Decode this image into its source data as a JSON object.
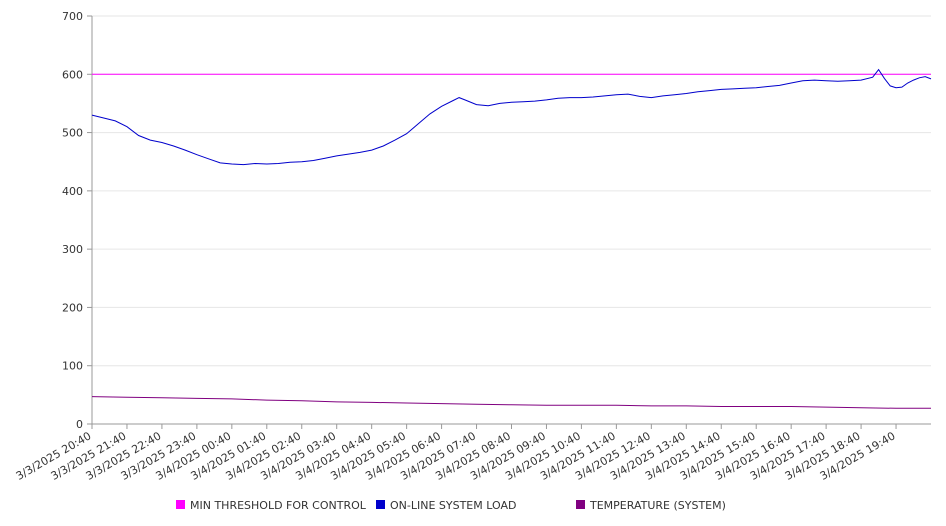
{
  "chart_data": {
    "type": "line",
    "title": "",
    "xlabel": "",
    "ylabel": "",
    "ylim": [
      0,
      700
    ],
    "yticks": [
      0,
      100,
      200,
      300,
      400,
      500,
      600,
      700
    ],
    "xlim": [
      "3/3/2025 20:40",
      "3/4/2025 20:40"
    ],
    "xtick_labels": [
      "3/3/2025 20:40",
      "3/3/2025 21:40",
      "3/3/2025 22:40",
      "3/3/2025 23:40",
      "3/4/2025 00:40",
      "3/4/2025 01:40",
      "3/4/2025 02:40",
      "3/4/2025 03:40",
      "3/4/2025 04:40",
      "3/4/2025 05:40",
      "3/4/2025 06:40",
      "3/4/2025 07:40",
      "3/4/2025 08:40",
      "3/4/2025 09:40",
      "3/4/2025 10:40",
      "3/4/2025 11:40",
      "3/4/2025 12:40",
      "3/4/2025 13:40",
      "3/4/2025 14:40",
      "3/4/2025 15:40",
      "3/4/2025 16:40",
      "3/4/2025 17:40",
      "3/4/2025 18:40",
      "3/4/2025 19:40"
    ],
    "grid": "horizontal",
    "legend_position": "bottom",
    "series": [
      {
        "name": "MIN THRESHOLD FOR CONTROL",
        "color": "#ff00ff",
        "points": [
          [
            "3/3/2025 20:40",
            600
          ],
          [
            "3/4/2025 20:40",
            600
          ]
        ]
      },
      {
        "name": "ON-LINE SYSTEM LOAD",
        "color": "#0000cc",
        "points": [
          [
            "3/3/2025 20:40",
            530
          ],
          [
            "3/3/2025 21:00",
            525
          ],
          [
            "3/3/2025 21:20",
            520
          ],
          [
            "3/3/2025 21:40",
            510
          ],
          [
            "3/3/2025 22:00",
            495
          ],
          [
            "3/3/2025 22:20",
            487
          ],
          [
            "3/3/2025 22:40",
            483
          ],
          [
            "3/3/2025 23:00",
            477
          ],
          [
            "3/3/2025 23:20",
            470
          ],
          [
            "3/3/2025 23:40",
            462
          ],
          [
            "3/4/2025 00:00",
            455
          ],
          [
            "3/4/2025 00:20",
            448
          ],
          [
            "3/4/2025 00:40",
            446
          ],
          [
            "3/4/2025 01:00",
            445
          ],
          [
            "3/4/2025 01:20",
            447
          ],
          [
            "3/4/2025 01:40",
            446
          ],
          [
            "3/4/2025 02:00",
            447
          ],
          [
            "3/4/2025 02:20",
            449
          ],
          [
            "3/4/2025 02:40",
            450
          ],
          [
            "3/4/2025 03:00",
            452
          ],
          [
            "3/4/2025 03:20",
            456
          ],
          [
            "3/4/2025 03:40",
            460
          ],
          [
            "3/4/2025 04:00",
            463
          ],
          [
            "3/4/2025 04:20",
            466
          ],
          [
            "3/4/2025 04:40",
            470
          ],
          [
            "3/4/2025 05:00",
            477
          ],
          [
            "3/4/2025 05:20",
            487
          ],
          [
            "3/4/2025 05:40",
            498
          ],
          [
            "3/4/2025 06:00",
            515
          ],
          [
            "3/4/2025 06:20",
            532
          ],
          [
            "3/4/2025 06:40",
            545
          ],
          [
            "3/4/2025 07:00",
            555
          ],
          [
            "3/4/2025 07:10",
            560
          ],
          [
            "3/4/2025 07:20",
            556
          ],
          [
            "3/4/2025 07:40",
            548
          ],
          [
            "3/4/2025 08:00",
            546
          ],
          [
            "3/4/2025 08:20",
            550
          ],
          [
            "3/4/2025 08:40",
            552
          ],
          [
            "3/4/2025 09:00",
            553
          ],
          [
            "3/4/2025 09:20",
            554
          ],
          [
            "3/4/2025 09:40",
            556
          ],
          [
            "3/4/2025 10:00",
            559
          ],
          [
            "3/4/2025 10:20",
            560
          ],
          [
            "3/4/2025 10:40",
            560
          ],
          [
            "3/4/2025 11:00",
            561
          ],
          [
            "3/4/2025 11:20",
            563
          ],
          [
            "3/4/2025 11:40",
            565
          ],
          [
            "3/4/2025 12:00",
            566
          ],
          [
            "3/4/2025 12:20",
            562
          ],
          [
            "3/4/2025 12:40",
            560
          ],
          [
            "3/4/2025 13:00",
            563
          ],
          [
            "3/4/2025 13:20",
            565
          ],
          [
            "3/4/2025 13:40",
            567
          ],
          [
            "3/4/2025 14:00",
            570
          ],
          [
            "3/4/2025 14:20",
            572
          ],
          [
            "3/4/2025 14:40",
            574
          ],
          [
            "3/4/2025 15:00",
            575
          ],
          [
            "3/4/2025 15:20",
            576
          ],
          [
            "3/4/2025 15:40",
            577
          ],
          [
            "3/4/2025 16:00",
            579
          ],
          [
            "3/4/2025 16:20",
            581
          ],
          [
            "3/4/2025 16:40",
            585
          ],
          [
            "3/4/2025 17:00",
            589
          ],
          [
            "3/4/2025 17:20",
            590
          ],
          [
            "3/4/2025 17:40",
            589
          ],
          [
            "3/4/2025 18:00",
            588
          ],
          [
            "3/4/2025 18:20",
            589
          ],
          [
            "3/4/2025 18:40",
            590
          ],
          [
            "3/4/2025 19:00",
            595
          ],
          [
            "3/4/2025 19:10",
            608
          ],
          [
            "3/4/2025 19:20",
            593
          ],
          [
            "3/4/2025 19:30",
            580
          ],
          [
            "3/4/2025 19:40",
            577
          ],
          [
            "3/4/2025 19:50",
            578
          ],
          [
            "3/4/2025 20:00",
            585
          ],
          [
            "3/4/2025 20:10",
            590
          ],
          [
            "3/4/2025 20:20",
            594
          ],
          [
            "3/4/2025 20:30",
            596
          ],
          [
            "3/4/2025 20:40",
            592
          ]
        ]
      },
      {
        "name": "TEMPERATURE (SYSTEM)",
        "color": "#800080",
        "points": [
          [
            "3/3/2025 20:40",
            47
          ],
          [
            "3/3/2025 21:40",
            46
          ],
          [
            "3/3/2025 22:40",
            45
          ],
          [
            "3/3/2025 23:40",
            44
          ],
          [
            "3/4/2025 00:40",
            43
          ],
          [
            "3/4/2025 01:40",
            41
          ],
          [
            "3/4/2025 02:40",
            40
          ],
          [
            "3/4/2025 03:40",
            38
          ],
          [
            "3/4/2025 04:40",
            37
          ],
          [
            "3/4/2025 05:40",
            36
          ],
          [
            "3/4/2025 06:40",
            35
          ],
          [
            "3/4/2025 07:40",
            34
          ],
          [
            "3/4/2025 08:40",
            33
          ],
          [
            "3/4/2025 09:40",
            32
          ],
          [
            "3/4/2025 10:40",
            32
          ],
          [
            "3/4/2025 11:40",
            32
          ],
          [
            "3/4/2025 12:40",
            31
          ],
          [
            "3/4/2025 13:40",
            31
          ],
          [
            "3/4/2025 14:40",
            30
          ],
          [
            "3/4/2025 15:40",
            30
          ],
          [
            "3/4/2025 16:40",
            30
          ],
          [
            "3/4/2025 17:40",
            29
          ],
          [
            "3/4/2025 18:40",
            28
          ],
          [
            "3/4/2025 19:40",
            27
          ],
          [
            "3/4/2025 20:40",
            27
          ]
        ]
      }
    ]
  }
}
